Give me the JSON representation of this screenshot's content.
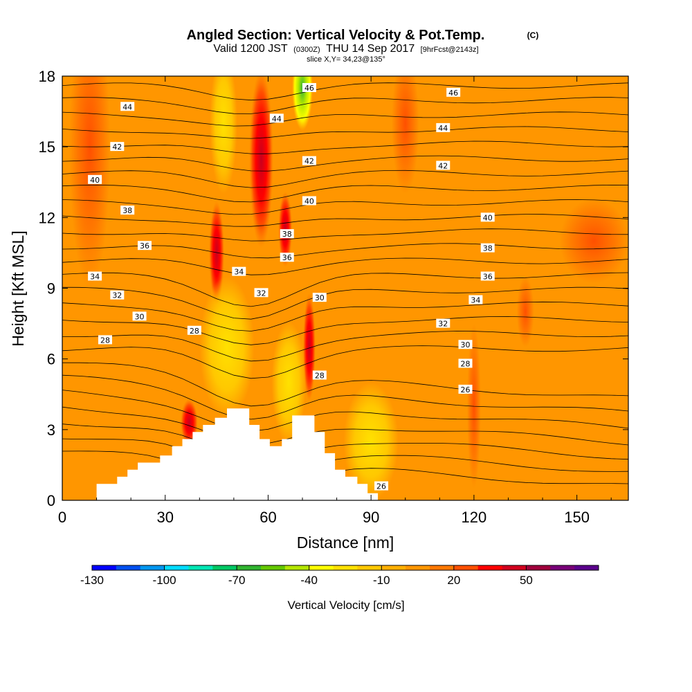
{
  "chart_data": {
    "type": "heatmap",
    "title": "Angled Section: Vertical Velocity & Pot.Temp.",
    "title_unit": "(C)",
    "subtitle": {
      "valid": "Valid 1200 JST",
      "utc": "(0300Z)",
      "date": "THU 14 Sep 2017",
      "forecast": "[9hrFcst@2143z]"
    },
    "slice_label": "slice X,Y= 34,23@135°",
    "xlabel": "Distance [nm]",
    "ylabel": "Height [Kft MSL]",
    "xlim": [
      0,
      165
    ],
    "ylim": [
      0,
      18
    ],
    "x_ticks": [
      0,
      30,
      60,
      90,
      120,
      150
    ],
    "y_ticks": [
      0,
      3,
      6,
      9,
      12,
      15,
      18
    ],
    "colorbar": {
      "label": "Vertical Velocity [cm/s]",
      "tick_labels": [
        -130,
        -100,
        -70,
        -40,
        -10,
        20,
        50
      ],
      "colors": [
        "#0000ff",
        "#0050f0",
        "#0096f0",
        "#00dcff",
        "#00e6b4",
        "#00c864",
        "#30b430",
        "#64c800",
        "#b4e600",
        "#ffff00",
        "#ffe100",
        "#ffc800",
        "#ffaf00",
        "#ff9600",
        "#ff7800",
        "#ff5000",
        "#ff0000",
        "#d2001e",
        "#a0003c",
        "#780078",
        "#5a008c"
      ]
    },
    "contour_labels": [
      {
        "value": "44",
        "x": 19,
        "y": 16.7
      },
      {
        "value": "42",
        "x": 16,
        "y": 15.0
      },
      {
        "value": "40",
        "x": 9.5,
        "y": 13.6
      },
      {
        "value": "38",
        "x": 19,
        "y": 12.3
      },
      {
        "value": "36",
        "x": 24,
        "y": 10.8
      },
      {
        "value": "34",
        "x": 9.5,
        "y": 9.5
      },
      {
        "value": "32",
        "x": 16,
        "y": 8.7
      },
      {
        "value": "30",
        "x": 22.5,
        "y": 7.8
      },
      {
        "value": "28",
        "x": 12.5,
        "y": 6.8
      },
      {
        "value": "28",
        "x": 38.5,
        "y": 7.2
      },
      {
        "value": "34",
        "x": 51.5,
        "y": 9.7
      },
      {
        "value": "32",
        "x": 58,
        "y": 8.8
      },
      {
        "value": "44",
        "x": 62.5,
        "y": 16.2
      },
      {
        "value": "46",
        "x": 72,
        "y": 17.5
      },
      {
        "value": "42",
        "x": 72,
        "y": 14.4
      },
      {
        "value": "40",
        "x": 72,
        "y": 12.7
      },
      {
        "value": "38",
        "x": 65.5,
        "y": 11.3
      },
      {
        "value": "36",
        "x": 65.5,
        "y": 10.3
      },
      {
        "value": "30",
        "x": 75,
        "y": 8.6
      },
      {
        "value": "28",
        "x": 75,
        "y": 5.3
      },
      {
        "value": "26",
        "x": 93,
        "y": 0.6
      },
      {
        "value": "46",
        "x": 114,
        "y": 17.3
      },
      {
        "value": "44",
        "x": 111,
        "y": 15.8
      },
      {
        "value": "42",
        "x": 111,
        "y": 14.2
      },
      {
        "value": "40",
        "x": 124,
        "y": 12.0
      },
      {
        "value": "38",
        "x": 124,
        "y": 10.7
      },
      {
        "value": "36",
        "x": 124,
        "y": 9.5
      },
      {
        "value": "34",
        "x": 120.5,
        "y": 8.5
      },
      {
        "value": "32",
        "x": 111,
        "y": 7.5
      },
      {
        "value": "30",
        "x": 117.5,
        "y": 6.6
      },
      {
        "value": "28",
        "x": 117.5,
        "y": 5.8
      },
      {
        "value": "26",
        "x": 117.5,
        "y": 4.7
      }
    ],
    "terrain_profile": [
      [
        10,
        0.7
      ],
      [
        13,
        0.7
      ],
      [
        13,
        0.7
      ],
      [
        16,
        0.7
      ],
      [
        16,
        1.0
      ],
      [
        19,
        1.0
      ],
      [
        19,
        1.3
      ],
      [
        22,
        1.3
      ],
      [
        22,
        1.6
      ],
      [
        25,
        1.6
      ],
      [
        25,
        1.6
      ],
      [
        28.5,
        1.6
      ],
      [
        28.5,
        1.9
      ],
      [
        32,
        1.9
      ],
      [
        32,
        2.3
      ],
      [
        35,
        2.3
      ],
      [
        35,
        2.6
      ],
      [
        38,
        2.6
      ],
      [
        38,
        2.9
      ],
      [
        41,
        2.9
      ],
      [
        41,
        3.2
      ],
      [
        44.5,
        3.2
      ],
      [
        44.5,
        3.5
      ],
      [
        48,
        3.5
      ],
      [
        48,
        3.9
      ],
      [
        54.5,
        3.9
      ],
      [
        54.5,
        3.2
      ],
      [
        57.5,
        3.2
      ],
      [
        57.5,
        2.6
      ],
      [
        60.5,
        2.6
      ],
      [
        60.5,
        2.3
      ],
      [
        64,
        2.3
      ],
      [
        64,
        2.6
      ],
      [
        67,
        2.6
      ],
      [
        67,
        3.6
      ],
      [
        73.5,
        3.6
      ],
      [
        73.5,
        2.9
      ],
      [
        76.5,
        2.9
      ],
      [
        76.5,
        2.0
      ],
      [
        79.5,
        2.0
      ],
      [
        79.5,
        1.3
      ],
      [
        82.5,
        1.3
      ],
      [
        82.5,
        1.0
      ],
      [
        86,
        1.0
      ],
      [
        86,
        0.7
      ],
      [
        89,
        0.7
      ],
      [
        89,
        0.3
      ],
      [
        92,
        0.3
      ]
    ]
  }
}
